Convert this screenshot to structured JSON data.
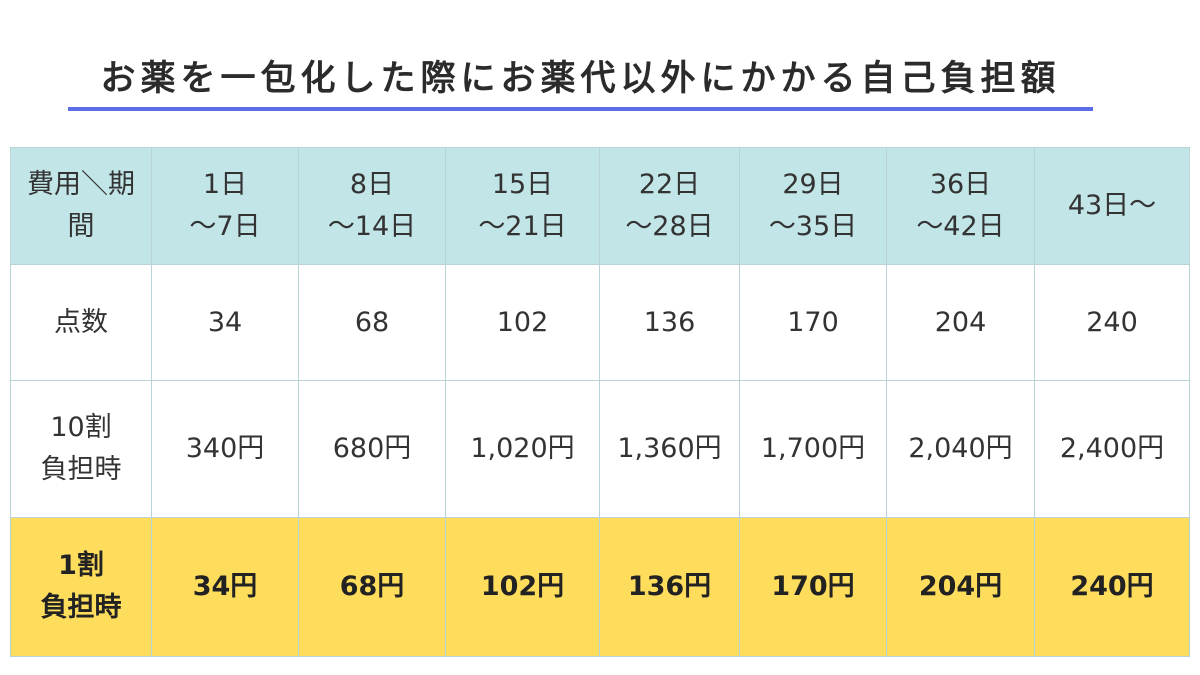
{
  "title": "お薬を一包化した際にお薬代以外にかかる自己負担額",
  "colors": {
    "accent_underline": "#5b6ee8",
    "header_bg": "#c2e5e7",
    "highlight_bg": "#fedd5c",
    "border": "#b9d3d6"
  },
  "table": {
    "corner_label": [
      "費用＼期",
      "間"
    ],
    "periods": [
      [
        "1日",
        "〜7日"
      ],
      [
        "8日",
        "〜14日"
      ],
      [
        "15日",
        "〜21日"
      ],
      [
        "22日",
        "〜28日"
      ],
      [
        "29日",
        "〜35日"
      ],
      [
        "36日",
        "〜42日"
      ],
      [
        "43日〜"
      ]
    ],
    "rows": [
      {
        "label": [
          "点数"
        ],
        "values": [
          "34",
          "68",
          "102",
          "136",
          "170",
          "204",
          "240"
        ]
      },
      {
        "label": [
          "10割",
          "負担時"
        ],
        "values": [
          "340円",
          "680円",
          "1,020円",
          "1,360円",
          "1,700円",
          "2,040円",
          "2,400円"
        ]
      },
      {
        "label": [
          "1割",
          "負担時"
        ],
        "values": [
          "34円",
          "68円",
          "102円",
          "136円",
          "170円",
          "204円",
          "240円"
        ]
      }
    ]
  }
}
